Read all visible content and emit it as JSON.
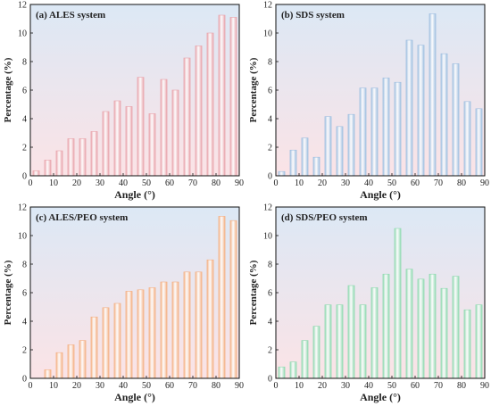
{
  "chart_data": [
    {
      "type": "bar",
      "title": "(a) ALES system",
      "xlabel": "Angle (°)",
      "ylabel": "Percentage (%)",
      "xlim": [
        0,
        90
      ],
      "ylim": [
        0,
        12
      ],
      "xticks": [
        0,
        10,
        20,
        30,
        40,
        50,
        60,
        70,
        80,
        90
      ],
      "yticks": [
        0,
        2,
        4,
        6,
        8,
        10,
        12
      ],
      "x": [
        2.5,
        7.5,
        12.5,
        17.5,
        22.5,
        27.5,
        32.5,
        37.5,
        42.5,
        47.5,
        52.5,
        57.5,
        62.5,
        67.5,
        72.5,
        77.5,
        82.5,
        87.5
      ],
      "values": [
        0.35,
        1.1,
        1.75,
        2.6,
        2.6,
        3.1,
        4.5,
        5.25,
        4.85,
        6.9,
        4.35,
        6.75,
        6.0,
        8.25,
        9.1,
        10.0,
        11.25,
        11.1
      ],
      "bar_color": "#e8a3ab",
      "bg_gradient": [
        "#dce8f5",
        "#fbe3e6"
      ]
    },
    {
      "type": "bar",
      "title": "(b) SDS system",
      "xlabel": "Angle (°)",
      "ylabel": "Percentage (%)",
      "xlim": [
        0,
        90
      ],
      "ylim": [
        0,
        12
      ],
      "xticks": [
        0,
        10,
        20,
        30,
        40,
        50,
        60,
        70,
        80,
        90
      ],
      "yticks": [
        0,
        2,
        4,
        6,
        8,
        10,
        12
      ],
      "x": [
        2.5,
        7.5,
        12.5,
        17.5,
        22.5,
        27.5,
        32.5,
        37.5,
        42.5,
        47.5,
        52.5,
        57.5,
        62.5,
        67.5,
        72.5,
        77.5,
        82.5,
        87.5
      ],
      "values": [
        0.3,
        1.8,
        2.65,
        1.3,
        4.15,
        3.45,
        4.3,
        6.15,
        6.15,
        6.85,
        6.55,
        9.5,
        9.15,
        11.35,
        8.55,
        7.85,
        5.2,
        4.7
      ],
      "bar_color": "#9fbfe0",
      "bg_gradient": [
        "#dce8f5",
        "#fbe3e6"
      ]
    },
    {
      "type": "bar",
      "title": "(c) ALES/PEO system",
      "xlabel": "Angle (°)",
      "ylabel": "Percentage (%)",
      "xlim": [
        0,
        90
      ],
      "ylim": [
        0,
        12
      ],
      "xticks": [
        0,
        10,
        20,
        30,
        40,
        50,
        60,
        70,
        80,
        90
      ],
      "yticks": [
        0,
        2,
        4,
        6,
        8,
        10,
        12
      ],
      "x": [
        2.5,
        7.5,
        12.5,
        17.5,
        22.5,
        27.5,
        32.5,
        37.5,
        42.5,
        47.5,
        52.5,
        57.5,
        62.5,
        67.5,
        72.5,
        77.5,
        82.5,
        87.5
      ],
      "values": [
        0,
        0.6,
        1.8,
        2.35,
        2.65,
        4.3,
        4.95,
        5.25,
        6.1,
        6.2,
        6.35,
        6.75,
        6.75,
        7.45,
        7.45,
        8.3,
        11.35,
        11.05
      ],
      "bar_color": "#f4b083",
      "bg_gradient": [
        "#dce8f5",
        "#fbe3e6"
      ]
    },
    {
      "type": "bar",
      "title": "(d) SDS/PEO system",
      "xlabel": "Angle (°)",
      "ylabel": "Percentage (%)",
      "xlim": [
        0,
        90
      ],
      "ylim": [
        0,
        12
      ],
      "xticks": [
        0,
        10,
        20,
        30,
        40,
        50,
        60,
        70,
        80,
        90
      ],
      "yticks": [
        0,
        2,
        4,
        6,
        8,
        10,
        12
      ],
      "x": [
        2.5,
        7.5,
        12.5,
        17.5,
        22.5,
        27.5,
        32.5,
        37.5,
        42.5,
        47.5,
        52.5,
        57.5,
        62.5,
        67.5,
        72.5,
        77.5,
        82.5,
        87.5
      ],
      "values": [
        0.8,
        1.15,
        2.65,
        3.65,
        5.15,
        5.15,
        6.5,
        5.15,
        6.35,
        7.3,
        10.5,
        7.65,
        6.95,
        7.3,
        6.3,
        7.15,
        4.8,
        5.15
      ],
      "bar_color": "#8fd9b0",
      "bg_gradient": [
        "#dce8f5",
        "#fbe3e6"
      ]
    }
  ]
}
